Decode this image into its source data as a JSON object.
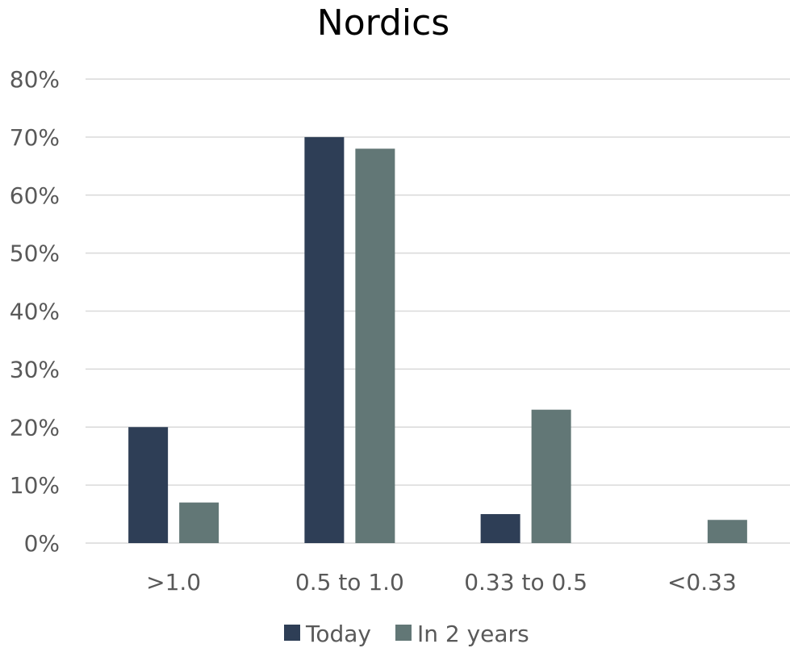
{
  "chart_data": {
    "type": "bar",
    "title": "Nordics",
    "xlabel": "",
    "ylabel": "",
    "categories": [
      ">1.0",
      "0.5 to 1.0",
      "0.33 to 0.5",
      "<0.33"
    ],
    "series": [
      {
        "name": "Today",
        "values": [
          20,
          70,
          5,
          0
        ],
        "color": "#2e3e56"
      },
      {
        "name": "In 2 years",
        "values": [
          7,
          68,
          23,
          4
        ],
        "color": "#627776"
      }
    ],
    "ylim": [
      0,
      80
    ],
    "yticks": [
      0,
      10,
      20,
      30,
      40,
      50,
      60,
      70,
      80
    ],
    "ytick_labels": [
      "0%",
      "10%",
      "20%",
      "30%",
      "40%",
      "50%",
      "60%",
      "70%",
      "80%"
    ],
    "grid": true,
    "legend_position": "bottom"
  }
}
